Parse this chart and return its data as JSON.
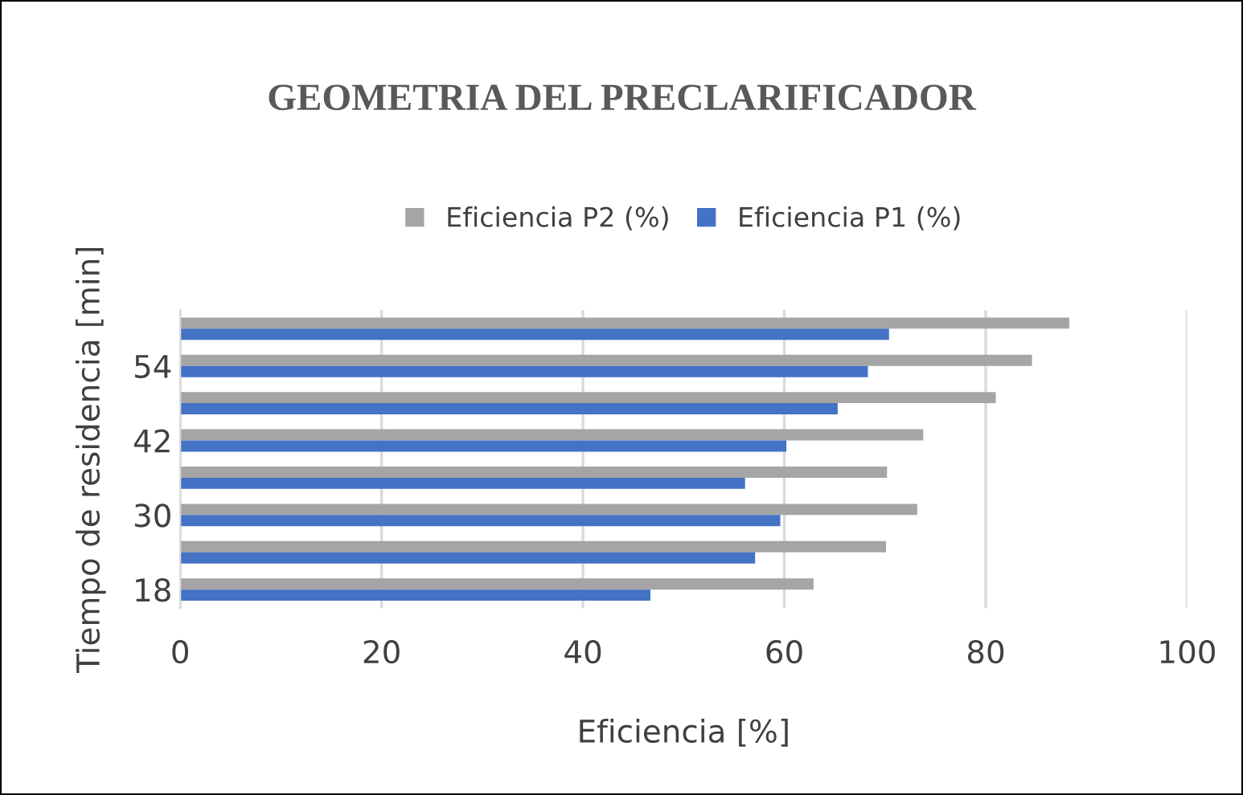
{
  "chart_data": {
    "type": "bar",
    "orientation": "horizontal",
    "title": "GEOMETRIA DEL PRECLARIFICADOR",
    "xlabel": "Eficiencia [%]",
    "ylabel": "Tiempo de residencia [min]",
    "categories": [
      null,
      "54",
      null,
      "42",
      null,
      "30",
      null,
      "18"
    ],
    "series": [
      {
        "name": "Eficiencia P2 (%)",
        "color": "#a5a5a5",
        "values": [
          88.3,
          84.6,
          81.0,
          73.8,
          70.2,
          73.2,
          70.1,
          62.9
        ]
      },
      {
        "name": "Eficiencia P1 (%)",
        "color": "#4472c4",
        "values": [
          70.4,
          68.3,
          65.3,
          60.2,
          56.1,
          59.6,
          57.1,
          46.7
        ]
      }
    ],
    "xlim": [
      0,
      100
    ],
    "xticks": [
      0,
      20,
      40,
      60,
      80,
      100
    ],
    "grid": "x",
    "legend": "top"
  }
}
